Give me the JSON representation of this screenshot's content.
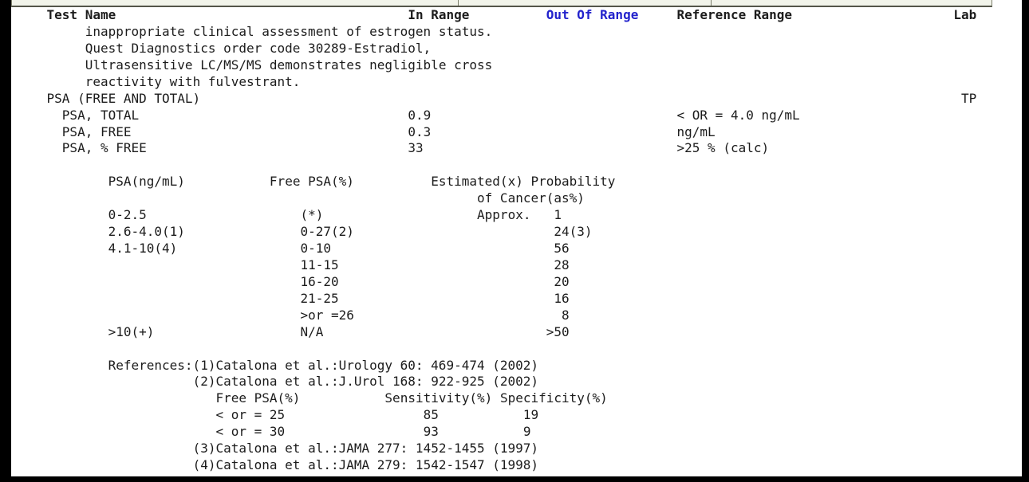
{
  "colors": {
    "text": "#1c1c1c",
    "out_of_range_blue": "#2222cc",
    "strip_fill": "#f2f4ea",
    "strip_border": "#7c7f6c",
    "page_bg": "#ffffff",
    "frame": "#000000"
  },
  "report": {
    "lines": [
      {
        "segments": [
          {
            "col": 4,
            "text": "Test Name",
            "bold": true,
            "name": "col-header-test-name"
          },
          {
            "col": 51,
            "text": "In Range",
            "bold": true,
            "name": "col-header-in-range"
          },
          {
            "col": 69,
            "text": "Out Of Range",
            "bold": true,
            "color": "out_of_range_blue",
            "name": "col-header-out-of-range"
          },
          {
            "col": 86,
            "text": "Reference Range",
            "bold": true,
            "name": "col-header-reference-range"
          },
          {
            "col": 122,
            "text": "Lab",
            "bold": true,
            "name": "col-header-lab"
          }
        ]
      },
      {
        "segments": [
          {
            "col": 9,
            "text": "inappropriate clinical assessment of estrogen status.",
            "name": "comment-line"
          }
        ]
      },
      {
        "segments": [
          {
            "col": 9,
            "text": "Quest Diagnostics order code 30289-Estradiol,",
            "name": "comment-line"
          }
        ]
      },
      {
        "segments": [
          {
            "col": 9,
            "text": "Ultrasensitive LC/MS/MS demonstrates negligible cross",
            "name": "comment-line"
          }
        ]
      },
      {
        "segments": [
          {
            "col": 9,
            "text": "reactivity with fulvestrant.",
            "name": "comment-line"
          }
        ]
      },
      {
        "segments": [
          {
            "col": 4,
            "text": "PSA (FREE AND TOTAL)",
            "name": "panel-name"
          },
          {
            "col": 123,
            "text": "TP",
            "name": "lab-code"
          }
        ]
      },
      {
        "segments": [
          {
            "col": 6,
            "text": "PSA, TOTAL",
            "name": "test-name"
          },
          {
            "col": 51,
            "text": "0.9",
            "name": "result-value"
          },
          {
            "col": 86,
            "text": "< OR = 4.0 ng/mL",
            "name": "reference-range"
          }
        ]
      },
      {
        "segments": [
          {
            "col": 6,
            "text": "PSA, FREE",
            "name": "test-name"
          },
          {
            "col": 51,
            "text": "0.3",
            "name": "result-value"
          },
          {
            "col": 86,
            "text": "ng/mL",
            "name": "reference-range"
          }
        ]
      },
      {
        "segments": [
          {
            "col": 6,
            "text": "PSA, % FREE",
            "name": "test-name"
          },
          {
            "col": 51,
            "text": "33",
            "name": "result-value"
          },
          {
            "col": 86,
            "text": ">25 % (calc)",
            "name": "reference-range"
          }
        ]
      },
      {
        "segments": []
      },
      {
        "segments": [
          {
            "col": 12,
            "text": "PSA(ng/mL)",
            "name": "table-header-psa"
          },
          {
            "col": 33,
            "text": "Free PSA(%)",
            "name": "table-header-free-psa"
          },
          {
            "col": 54,
            "text": "Estimated(x) Probability",
            "name": "table-header-probability"
          }
        ]
      },
      {
        "segments": [
          {
            "col": 60,
            "text": "of Cancer(as%)",
            "name": "table-header-probability-2"
          }
        ]
      },
      {
        "segments": [
          {
            "col": 12,
            "text": "0-2.5",
            "name": "psa-range"
          },
          {
            "col": 37,
            "text": "(*)",
            "name": "free-psa-range"
          },
          {
            "col": 60,
            "text": "Approx.",
            "name": "probability-label"
          },
          {
            "col": 70,
            "text": "1",
            "name": "probability-value"
          }
        ]
      },
      {
        "segments": [
          {
            "col": 12,
            "text": "2.6-4.0(1)",
            "name": "psa-range"
          },
          {
            "col": 37,
            "text": "0-27(2)",
            "name": "free-psa-range"
          },
          {
            "col": 70,
            "text": "24(3)",
            "name": "probability-value"
          }
        ]
      },
      {
        "segments": [
          {
            "col": 12,
            "text": "4.1-10(4)",
            "name": "psa-range"
          },
          {
            "col": 37,
            "text": "0-10",
            "name": "free-psa-range"
          },
          {
            "col": 70,
            "text": "56",
            "name": "probability-value"
          }
        ]
      },
      {
        "segments": [
          {
            "col": 37,
            "text": "11-15",
            "name": "free-psa-range"
          },
          {
            "col": 70,
            "text": "28",
            "name": "probability-value"
          }
        ]
      },
      {
        "segments": [
          {
            "col": 37,
            "text": "16-20",
            "name": "free-psa-range"
          },
          {
            "col": 70,
            "text": "20",
            "name": "probability-value"
          }
        ]
      },
      {
        "segments": [
          {
            "col": 37,
            "text": "21-25",
            "name": "free-psa-range"
          },
          {
            "col": 70,
            "text": "16",
            "name": "probability-value"
          }
        ]
      },
      {
        "segments": [
          {
            "col": 37,
            "text": ">or =26",
            "name": "free-psa-range"
          },
          {
            "col": 71,
            "text": "8",
            "name": "probability-value"
          }
        ]
      },
      {
        "segments": [
          {
            "col": 12,
            "text": ">10(+)",
            "name": "psa-range"
          },
          {
            "col": 37,
            "text": "N/A",
            "name": "free-psa-range"
          },
          {
            "col": 69,
            "text": ">50",
            "name": "probability-value"
          }
        ]
      },
      {
        "segments": []
      },
      {
        "segments": [
          {
            "col": 12,
            "text": "References:(1)Catalona et al.:Urology 60: 469-474 (2002)",
            "name": "reference-citation"
          }
        ]
      },
      {
        "segments": [
          {
            "col": 23,
            "text": "(2)Catalona et al.:J.Urol 168: 922-925 (2002)",
            "name": "reference-citation"
          }
        ]
      },
      {
        "segments": [
          {
            "col": 26,
            "text": "Free PSA(%)",
            "name": "subtable-header-free-psa"
          },
          {
            "col": 48,
            "text": "Sensitivity(%)",
            "name": "subtable-header-sensitivity"
          },
          {
            "col": 63,
            "text": "Specificity(%)",
            "name": "subtable-header-specificity"
          }
        ]
      },
      {
        "segments": [
          {
            "col": 26,
            "text": "< or = 25",
            "name": "subtable-free-psa"
          },
          {
            "col": 53,
            "text": "85",
            "name": "subtable-sensitivity"
          },
          {
            "col": 66,
            "text": "19",
            "name": "subtable-specificity"
          }
        ]
      },
      {
        "segments": [
          {
            "col": 26,
            "text": "< or = 30",
            "name": "subtable-free-psa"
          },
          {
            "col": 53,
            "text": "93",
            "name": "subtable-sensitivity"
          },
          {
            "col": 66,
            "text": "9",
            "name": "subtable-specificity"
          }
        ]
      },
      {
        "segments": [
          {
            "col": 23,
            "text": "(3)Catalona et al.:JAMA 277: 1452-1455 (1997)",
            "name": "reference-citation"
          }
        ]
      },
      {
        "segments": [
          {
            "col": 23,
            "text": "(4)Catalona et al.:JAMA 279: 1542-1547 (1998)",
            "name": "reference-citation"
          }
        ]
      }
    ]
  }
}
